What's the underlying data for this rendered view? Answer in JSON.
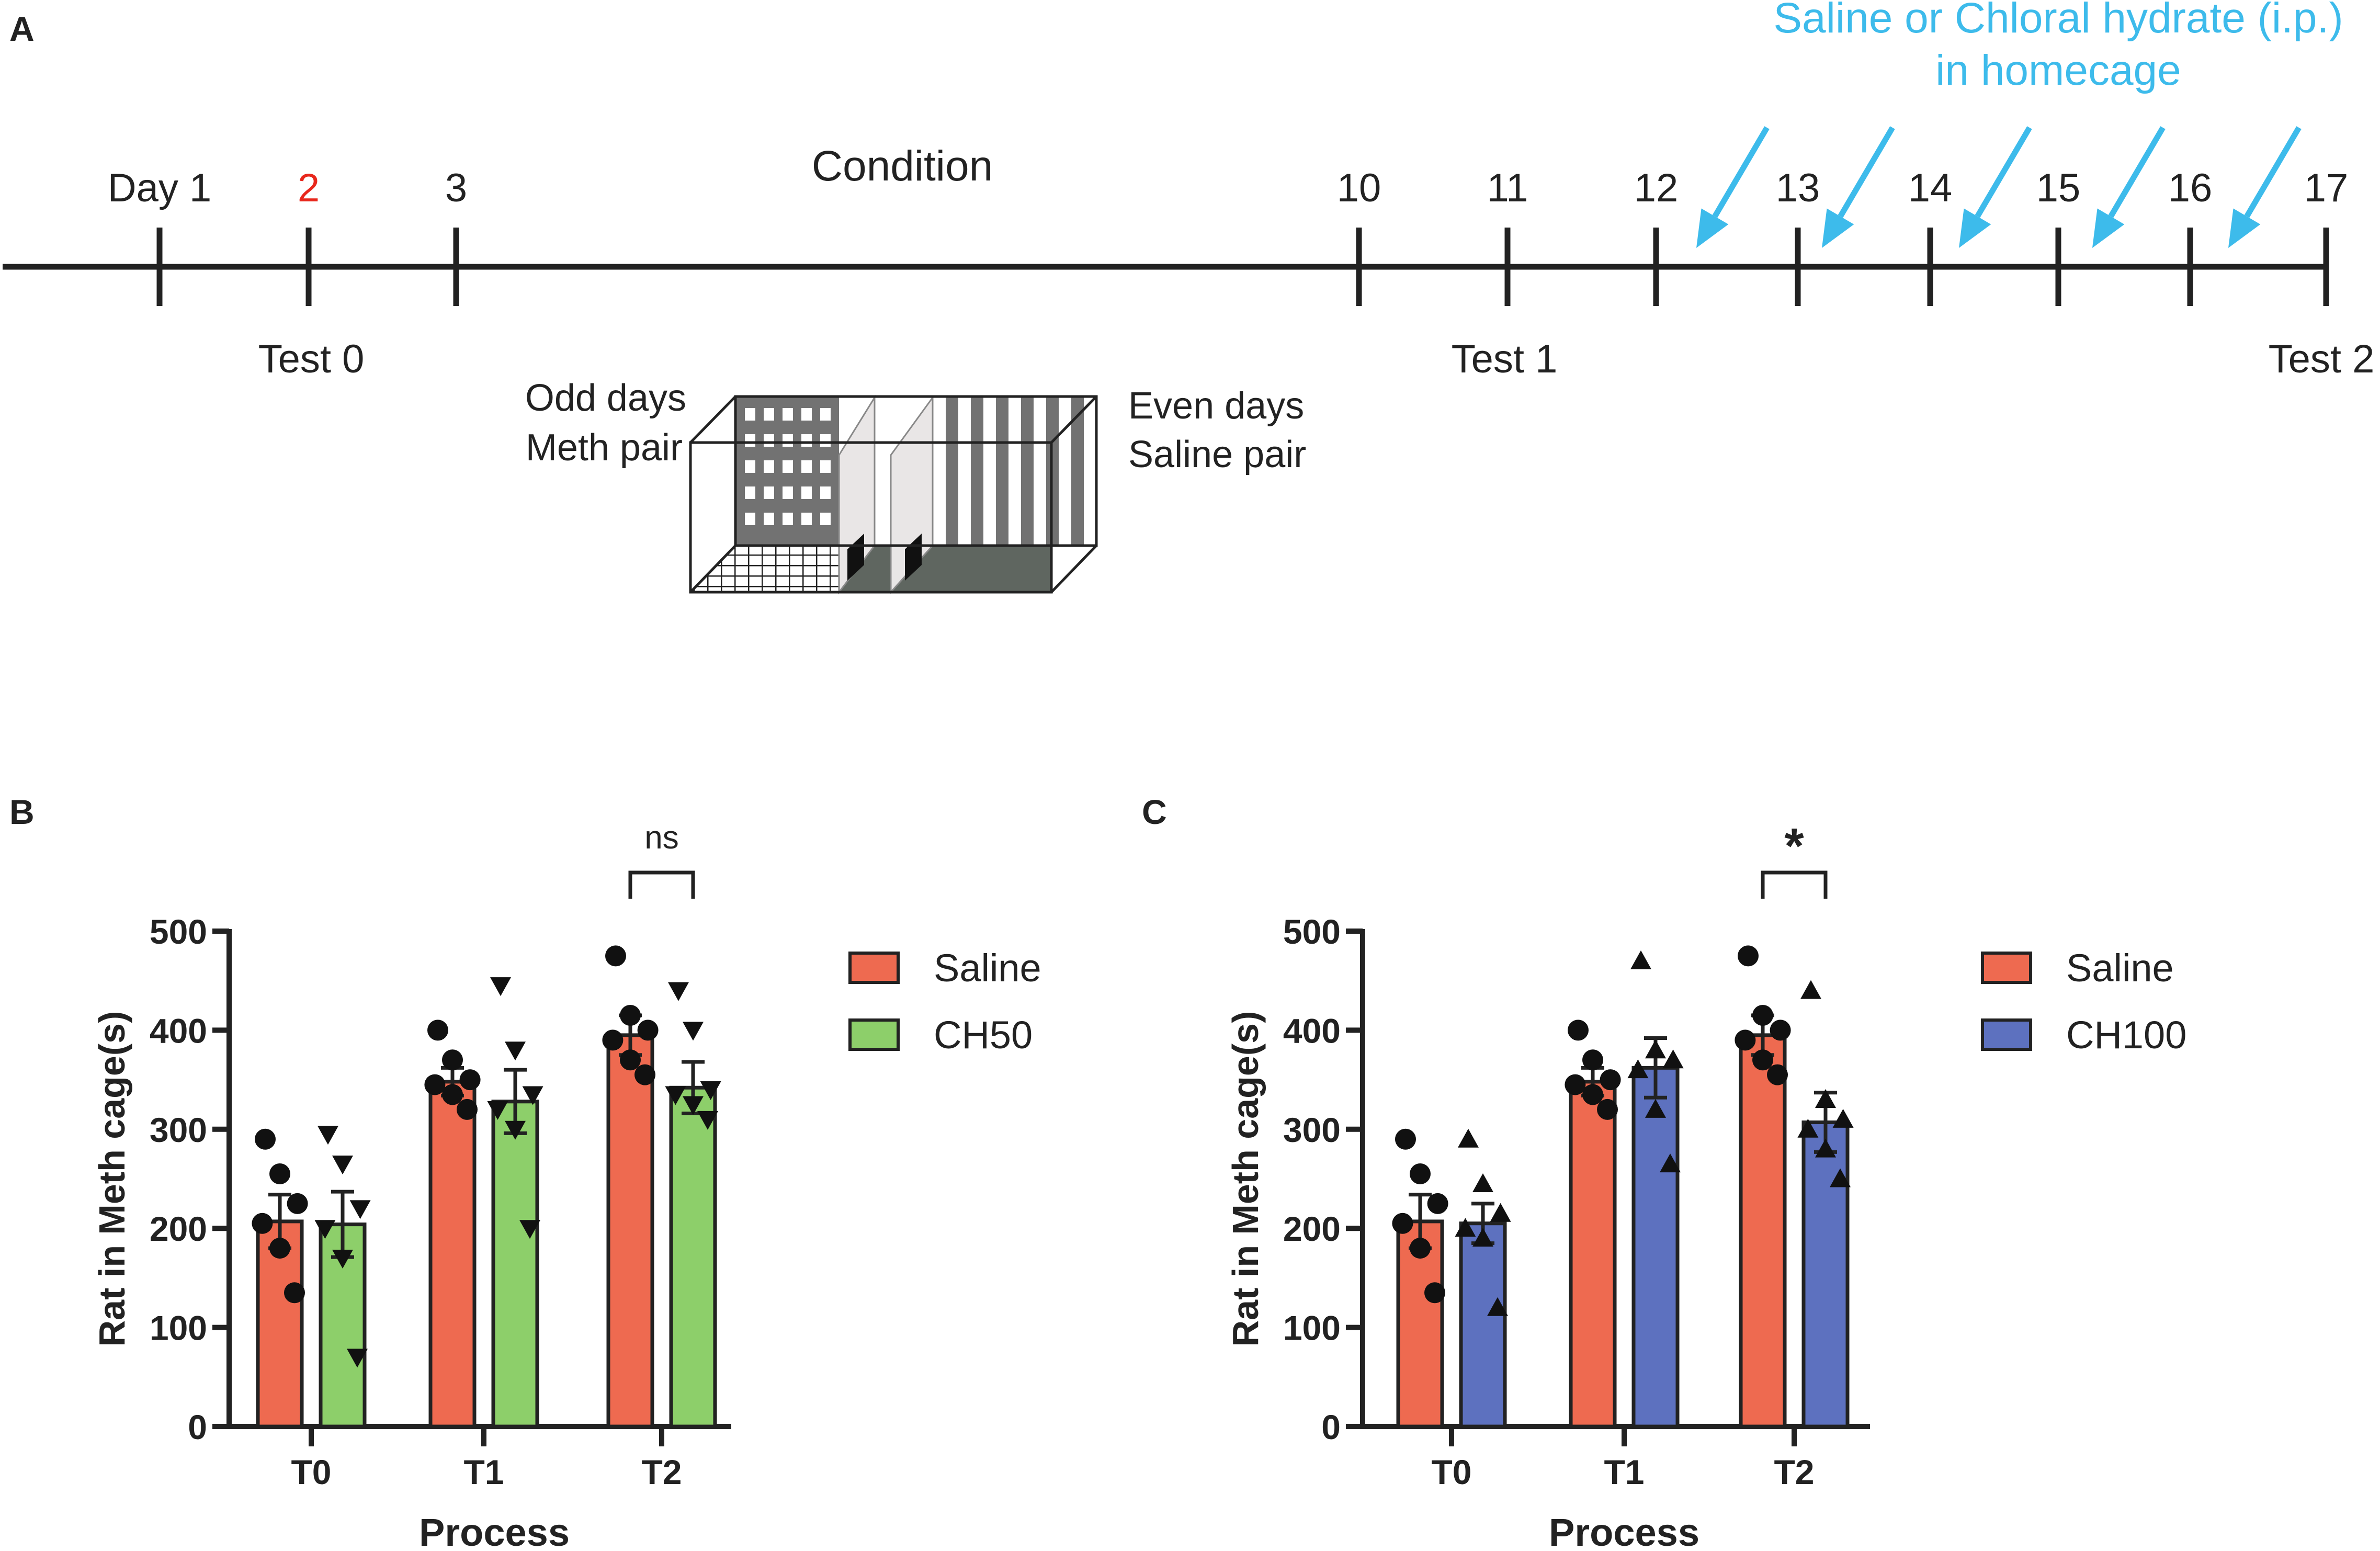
{
  "colors": {
    "saline": "#EE6A50",
    "ch50": "#8DCF6A",
    "ch100": "#5D71BF",
    "injection": "#3DBBEB",
    "highlight": "#E8271C",
    "ink": "#222222"
  },
  "panel_a": {
    "label": "A",
    "injection_title_line1": "Saline or Chloral hydrate (i.p.)",
    "injection_title_line2": "in homecage",
    "condition_label": "Condition",
    "days": [
      {
        "label": "Day 1",
        "highlight": false
      },
      {
        "label": "2",
        "highlight": true
      },
      {
        "label": "3",
        "highlight": false
      },
      {
        "label": "10",
        "highlight": false
      },
      {
        "label": "11",
        "highlight": false
      },
      {
        "label": "12",
        "highlight": false
      },
      {
        "label": "13",
        "highlight": false
      },
      {
        "label": "14",
        "highlight": false
      },
      {
        "label": "15",
        "highlight": false
      },
      {
        "label": "16",
        "highlight": false
      },
      {
        "label": "17",
        "highlight": false
      }
    ],
    "tests": [
      "Test 0",
      "Test 1",
      "Test 2"
    ],
    "odd_days": "Odd days",
    "meth_pair": "Meth pair",
    "even_days": "Even days",
    "saline_pair": "Saline pair",
    "injection_arrow_icon": "arrow-down-left-icon"
  },
  "chart_data": [
    {
      "panel": "B",
      "type": "bar",
      "title": "",
      "xlabel": "Process",
      "ylabel": "Rat in Meth cage(s)",
      "ylim": [
        0,
        500
      ],
      "yticks": [
        0,
        100,
        200,
        300,
        400,
        500
      ],
      "categories": [
        "T0",
        "T1",
        "T2"
      ],
      "series": [
        {
          "name": "Saline",
          "marker": "circle",
          "values": [
            207,
            348,
            395
          ],
          "sem": [
            27,
            14,
            20
          ],
          "points": [
            [
              290,
              255,
              225,
              205,
              180,
              135
            ],
            [
              400,
              370,
              350,
              345,
              335,
              320
            ],
            [
              475,
              415,
              400,
              390,
              370,
              355
            ]
          ]
        },
        {
          "name": "CH50",
          "marker": "triangle-down",
          "values": [
            204,
            328,
            342
          ],
          "sem": [
            33,
            32,
            26
          ],
          "points": [
            [
              295,
              265,
              220,
              200,
              170,
              70
            ],
            [
              445,
              380,
              335,
              320,
              300,
              200
            ],
            [
              440,
              400,
              340,
              335,
              325,
              310
            ]
          ]
        }
      ],
      "significance": [
        {
          "category": "T2",
          "label": "ns"
        }
      ],
      "legend_position": "right"
    },
    {
      "panel": "C",
      "type": "bar",
      "title": "",
      "xlabel": "Process",
      "ylabel": "Rat in Meth cage(s)",
      "ylim": [
        0,
        500
      ],
      "yticks": [
        0,
        100,
        200,
        300,
        400,
        500
      ],
      "categories": [
        "T0",
        "T1",
        "T2"
      ],
      "series": [
        {
          "name": "Saline",
          "marker": "circle",
          "values": [
            207,
            348,
            395
          ],
          "sem": [
            27,
            14,
            20
          ],
          "points": [
            [
              290,
              255,
              225,
              205,
              180,
              135
            ],
            [
              400,
              370,
              350,
              345,
              335,
              320
            ],
            [
              475,
              415,
              400,
              390,
              370,
              355
            ]
          ]
        },
        {
          "name": "CH100",
          "marker": "triangle-up",
          "values": [
            205,
            362,
            307
          ],
          "sem": [
            20,
            30,
            30
          ],
          "points": [
            [
              290,
              245,
              215,
              200,
              190,
              120
            ],
            [
              470,
              380,
              370,
              360,
              320,
              265
            ],
            [
              440,
              330,
              310,
              300,
              280,
              250
            ]
          ]
        }
      ],
      "significance": [
        {
          "category": "T2",
          "label": "*"
        }
      ],
      "legend_position": "right"
    }
  ],
  "panels": [
    {
      "label": "B"
    },
    {
      "label": "C"
    }
  ]
}
